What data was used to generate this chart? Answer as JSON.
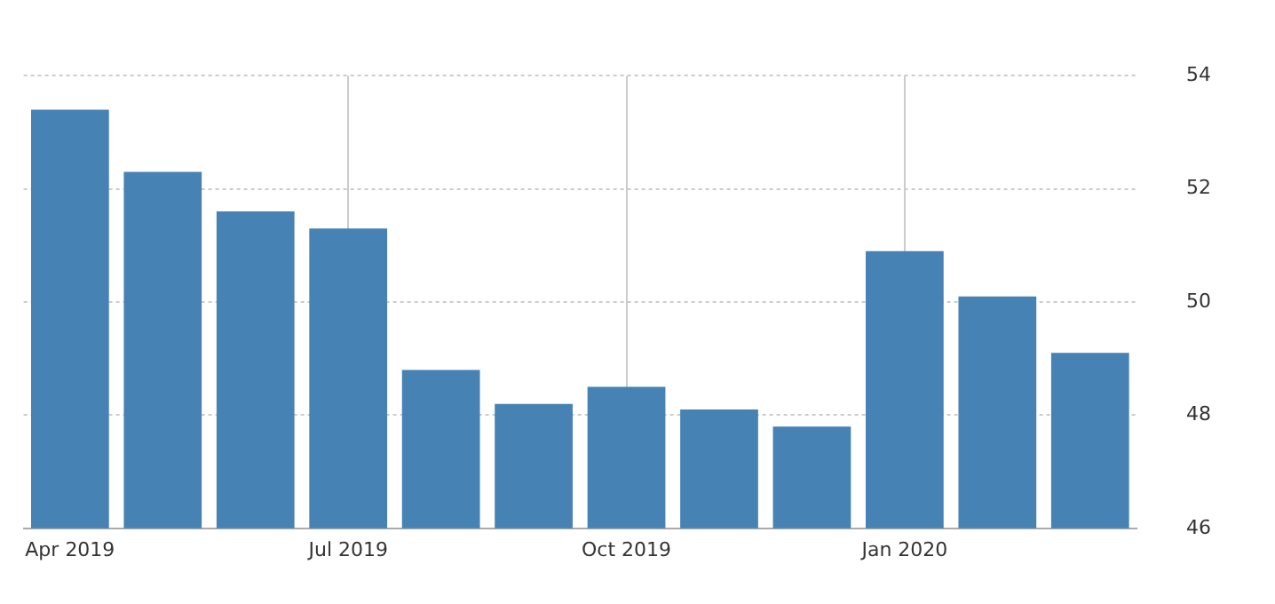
{
  "chart_data": {
    "type": "bar",
    "categories": [
      "Apr 2019",
      null,
      null,
      "Jul 2019",
      null,
      null,
      "Oct 2019",
      null,
      null,
      "Jan 2020",
      null,
      null
    ],
    "values": [
      53.4,
      52.3,
      51.6,
      51.3,
      48.8,
      48.2,
      48.5,
      48.1,
      47.8,
      50.9,
      50.1,
      49.1
    ],
    "color": "#4682b4",
    "ylim": [
      46,
      54
    ],
    "yticks": [
      46,
      48,
      50,
      52,
      54
    ],
    "grid": true
  }
}
